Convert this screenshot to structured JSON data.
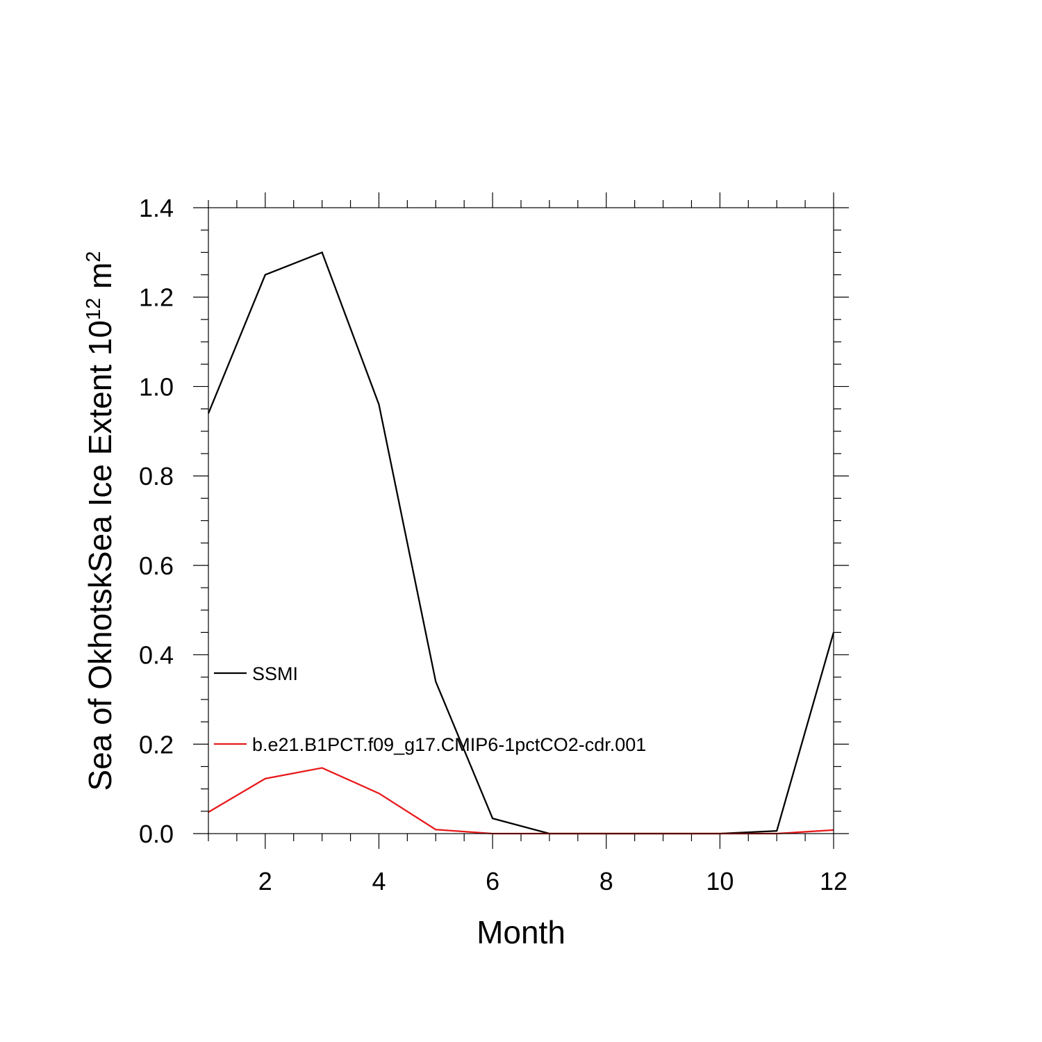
{
  "chart_data": {
    "type": "line",
    "title": "",
    "xlabel": "Month",
    "ylabel": {
      "prefix": "Sea of OkhotskSea Ice Extent 10",
      "exp1": "12",
      "mid": " m",
      "exp2": "2"
    },
    "xlim": [
      1,
      12
    ],
    "ylim": [
      0.0,
      1.4
    ],
    "xticks": [
      "2",
      "4",
      "6",
      "8",
      "10",
      "12"
    ],
    "yticks": [
      "0.0",
      "0.2",
      "0.4",
      "0.6",
      "0.8",
      "1.0",
      "1.2",
      "1.4"
    ],
    "grid": false,
    "legend_position": "inside-left",
    "x": [
      1,
      2,
      3,
      4,
      5,
      6,
      7,
      8,
      9,
      10,
      11,
      12
    ],
    "series": [
      {
        "name": "SSMI",
        "color": "#000000",
        "values": [
          0.94,
          1.25,
          1.3,
          0.96,
          0.34,
          0.034,
          0.0,
          0.0,
          0.0,
          0.0,
          0.006,
          0.45
        ]
      },
      {
        "name": "b.e21.B1PCT.f09_g17.CMIP6-1pctCO2-cdr.001",
        "color": "#e8191b",
        "values": [
          0.048,
          0.123,
          0.147,
          0.09,
          0.009,
          0.0,
          0.0,
          0.0,
          0.0,
          0.0,
          0.0,
          0.008
        ]
      }
    ]
  }
}
